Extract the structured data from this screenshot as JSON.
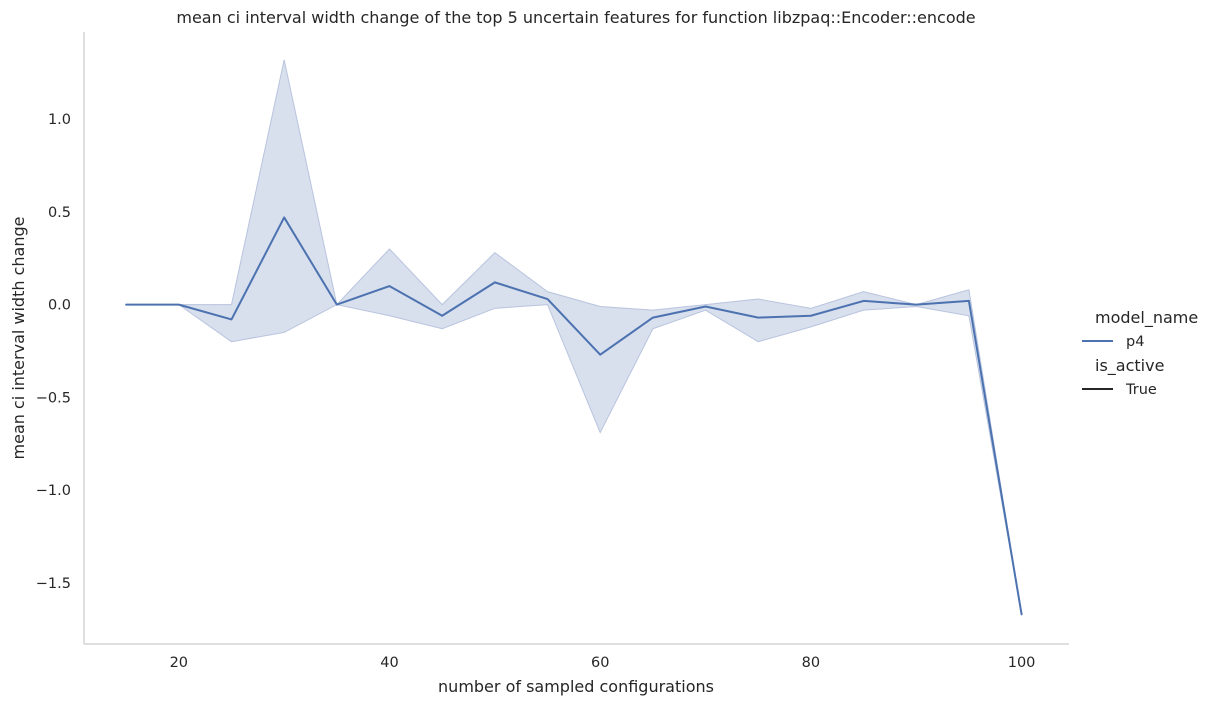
{
  "chart_data": {
    "type": "line",
    "title": "mean ci interval width change of the top 5 uncertain features for function libzpaq::Encoder::encode",
    "xlabel": "number of sampled configurations",
    "ylabel": "mean ci interval width change",
    "xlim": [
      11,
      104.5
    ],
    "ylim": [
      -1.83,
      1.47
    ],
    "x_ticks": [
      20,
      40,
      60,
      80,
      100
    ],
    "y_ticks": [
      -1.5,
      -1.0,
      -0.5,
      0.0,
      0.5,
      1.0
    ],
    "x_tick_labels": [
      "20",
      "40",
      "60",
      "80",
      "100"
    ],
    "y_tick_labels": [
      "−1.5",
      "−1.0",
      "−0.5",
      "0.0",
      "0.5",
      "1.0"
    ],
    "grid": false,
    "legend_placement": "right",
    "series": [
      {
        "name": "p4",
        "color": "#4c72b0",
        "x": [
          15,
          20,
          25,
          30,
          35,
          40,
          45,
          50,
          55,
          60,
          65,
          70,
          75,
          80,
          85,
          90,
          95,
          100
        ],
        "y": [
          0.0,
          0.0,
          -0.08,
          0.47,
          0.0,
          0.1,
          -0.06,
          0.12,
          0.03,
          -0.27,
          -0.07,
          -0.01,
          -0.07,
          -0.06,
          0.02,
          0.0,
          0.02,
          -1.67
        ],
        "ci_lower": [
          0.0,
          0.0,
          -0.2,
          -0.15,
          0.0,
          -0.06,
          -0.13,
          -0.02,
          0.0,
          -0.69,
          -0.13,
          -0.03,
          -0.2,
          -0.12,
          -0.03,
          -0.01,
          -0.06,
          -1.67
        ],
        "ci_upper": [
          0.0,
          0.0,
          0.0,
          1.32,
          0.0,
          0.3,
          0.0,
          0.28,
          0.07,
          -0.01,
          -0.03,
          0.0,
          0.03,
          -0.02,
          0.07,
          0.0,
          0.08,
          -1.67
        ],
        "ci_color": "#b8c4de"
      }
    ],
    "legend": {
      "hue_title": "model_name",
      "hue_entries": [
        {
          "label": "p4",
          "color": "#4c72b0"
        }
      ],
      "style_title": "is_active",
      "style_entries": [
        {
          "label": "True",
          "color": "#262626"
        }
      ]
    }
  }
}
